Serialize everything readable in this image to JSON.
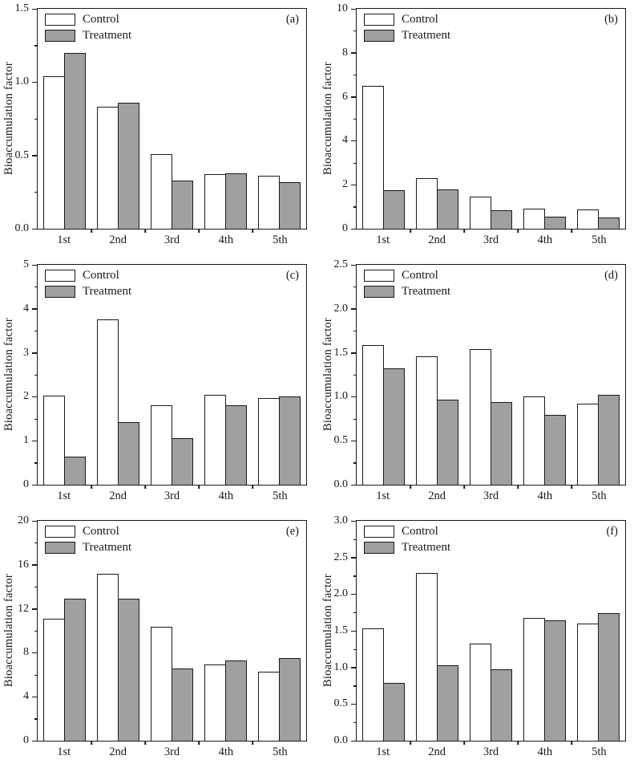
{
  "figure": {
    "ylabel": "Bioaccumulation factor",
    "categories": [
      "1st",
      "2nd",
      "3rd",
      "4th",
      "5th"
    ],
    "legend": [
      "Control",
      "Treatment"
    ]
  },
  "colors": {
    "control_fill": "#ffffff",
    "treatment_fill": "#a0a0a0",
    "axis": "#1a1a1a"
  },
  "chart_data": [
    {
      "type": "bar",
      "panel": "(a)",
      "ylabel": "Bioaccumulation factor",
      "categories": [
        "1st",
        "2nd",
        "3rd",
        "4th",
        "5th"
      ],
      "series": [
        {
          "name": "Control",
          "values": [
            1.04,
            0.83,
            0.51,
            0.37,
            0.36
          ]
        },
        {
          "name": "Treatment",
          "values": [
            1.2,
            0.86,
            0.33,
            0.38,
            0.32
          ]
        }
      ],
      "ylim": [
        0,
        1.5
      ],
      "yticks": [
        "0.0",
        "0.5",
        "1.0",
        "1.5"
      ],
      "grid": false,
      "legend_position": "top-left"
    },
    {
      "type": "bar",
      "panel": "(b)",
      "ylabel": "Bioaccumulation factor",
      "categories": [
        "1st",
        "2nd",
        "3rd",
        "4th",
        "5th"
      ],
      "series": [
        {
          "name": "Control",
          "values": [
            6.5,
            2.3,
            1.45,
            0.9,
            0.88
          ]
        },
        {
          "name": "Treatment",
          "values": [
            1.77,
            1.78,
            0.85,
            0.55,
            0.52
          ]
        }
      ],
      "ylim": [
        0,
        10
      ],
      "yticks": [
        "0",
        "2",
        "4",
        "6",
        "8",
        "10"
      ],
      "grid": false,
      "legend_position": "top-left"
    },
    {
      "type": "bar",
      "panel": "(c)",
      "ylabel": "Bioaccumulation factor",
      "categories": [
        "1st",
        "2nd",
        "3rd",
        "4th",
        "5th"
      ],
      "series": [
        {
          "name": "Control",
          "values": [
            2.02,
            3.76,
            1.81,
            2.05,
            1.98
          ]
        },
        {
          "name": "Treatment",
          "values": [
            0.64,
            1.43,
            1.06,
            1.8,
            2.01
          ]
        }
      ],
      "ylim": [
        0,
        5
      ],
      "yticks": [
        "0",
        "1",
        "2",
        "3",
        "4",
        "5"
      ],
      "grid": false,
      "legend_position": "top-left"
    },
    {
      "type": "bar",
      "panel": "(d)",
      "ylabel": "Bioaccumulation factor",
      "categories": [
        "1st",
        "2nd",
        "3rd",
        "4th",
        "5th"
      ],
      "series": [
        {
          "name": "Control",
          "values": [
            1.59,
            1.46,
            1.54,
            1.0,
            0.92
          ]
        },
        {
          "name": "Treatment",
          "values": [
            1.32,
            0.97,
            0.94,
            0.79,
            1.02
          ]
        }
      ],
      "ylim": [
        0,
        2.5
      ],
      "yticks": [
        "0.0",
        "0.5",
        "1.0",
        "1.5",
        "2.0",
        "2.5"
      ],
      "grid": false,
      "legend_position": "top-left"
    },
    {
      "type": "bar",
      "panel": "(e)",
      "ylabel": "Bioaccumulation factor",
      "categories": [
        "1st",
        "2nd",
        "3rd",
        "4th",
        "5th"
      ],
      "series": [
        {
          "name": "Control",
          "values": [
            11.1,
            15.2,
            10.4,
            6.9,
            6.3
          ]
        },
        {
          "name": "Treatment",
          "values": [
            12.9,
            12.9,
            6.6,
            7.3,
            7.5
          ]
        }
      ],
      "ylim": [
        0,
        20
      ],
      "yticks": [
        "0",
        "4",
        "8",
        "12",
        "16",
        "20"
      ],
      "grid": false,
      "legend_position": "top-left"
    },
    {
      "type": "bar",
      "panel": "(f)",
      "ylabel": "Bioaccumulation factor",
      "categories": [
        "1st",
        "2nd",
        "3rd",
        "4th",
        "5th"
      ],
      "series": [
        {
          "name": "Control",
          "values": [
            1.53,
            2.29,
            1.33,
            1.68,
            1.6
          ]
        },
        {
          "name": "Treatment",
          "values": [
            0.79,
            1.03,
            0.97,
            1.64,
            1.74
          ]
        }
      ],
      "ylim": [
        0,
        3.0
      ],
      "yticks": [
        "0.0",
        "0.5",
        "1.0",
        "1.5",
        "2.0",
        "2.5",
        "3.0"
      ],
      "grid": false,
      "legend_position": "top-left"
    }
  ]
}
